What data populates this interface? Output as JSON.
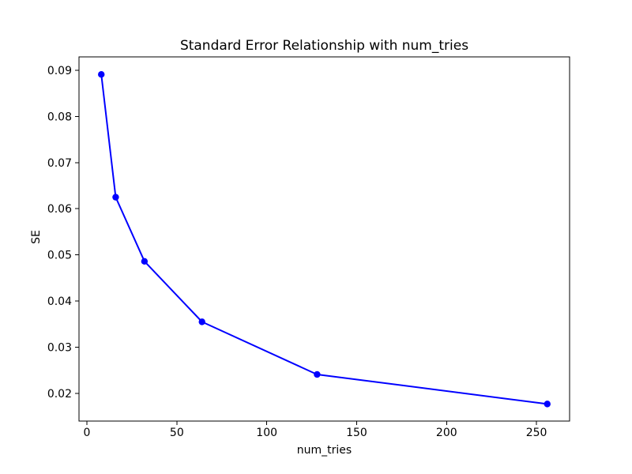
{
  "chart_data": {
    "type": "line",
    "title": "Standard Error Relationship with num_tries",
    "xlabel": "num_tries",
    "ylabel": "SE",
    "series": [
      {
        "name": "SE",
        "color": "#0000ff",
        "marker": "circle",
        "x": [
          8,
          16,
          32,
          64,
          128,
          256
        ],
        "y": [
          0.0891,
          0.0625,
          0.0486,
          0.0355,
          0.0241,
          0.0177
        ]
      }
    ],
    "x_ticks": [
      0,
      50,
      100,
      150,
      200,
      250
    ],
    "x_tick_labels": [
      "0",
      "50",
      "100",
      "150",
      "200",
      "250"
    ],
    "y_ticks": [
      0.02,
      0.03,
      0.04,
      0.05,
      0.06,
      0.07,
      0.08,
      0.09
    ],
    "y_tick_labels": [
      "0.02",
      "0.03",
      "0.04",
      "0.05",
      "0.06",
      "0.07",
      "0.08",
      "0.09"
    ],
    "xlim": [
      -4.4,
      268.4
    ],
    "ylim": [
      0.014,
      0.0929
    ],
    "grid": false,
    "legend": null,
    "axis_color": "#000000",
    "background_color": "#ffffff"
  }
}
